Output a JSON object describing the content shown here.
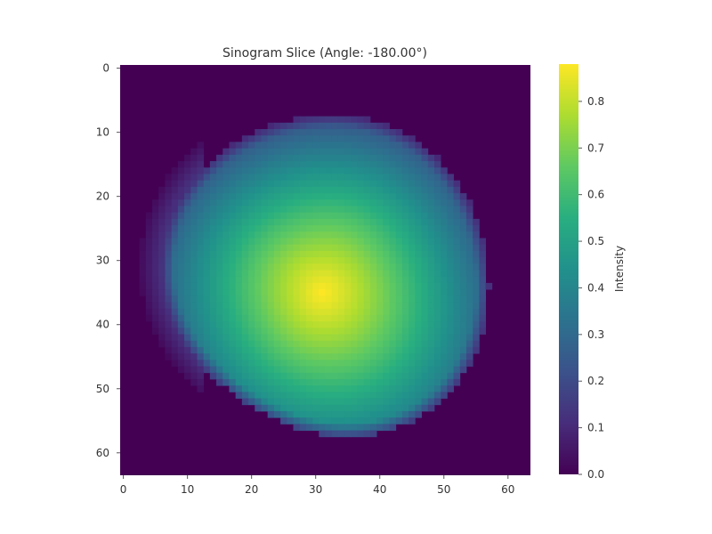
{
  "chart_data": {
    "type": "heatmap",
    "title": "Sinogram Slice (Angle: -180.00°)",
    "xlabel": "",
    "ylabel": "",
    "grid_size": [
      64,
      64
    ],
    "xlim": [
      0,
      63
    ],
    "ylim": [
      63,
      0
    ],
    "x_ticks": [
      0,
      10,
      20,
      30,
      40,
      50,
      60
    ],
    "y_ticks": [
      0,
      10,
      20,
      30,
      40,
      50,
      60
    ],
    "colormap": "viridis",
    "colorbar": {
      "label": "Intensity",
      "range": [
        0.0,
        0.88
      ],
      "ticks": [
        "0.0",
        "0.1",
        "0.2",
        "0.3",
        "0.4",
        "0.5",
        "0.6",
        "0.7",
        "0.8"
      ]
    },
    "field": {
      "shape": "disk",
      "center": [
        31,
        35
      ],
      "peak_value": 0.88,
      "edge_value": 0.15,
      "background_value": 0.0,
      "disk_bounds": {
        "x": [
          5,
          56
        ],
        "y": [
          6,
          57
        ]
      }
    },
    "grid": false
  }
}
